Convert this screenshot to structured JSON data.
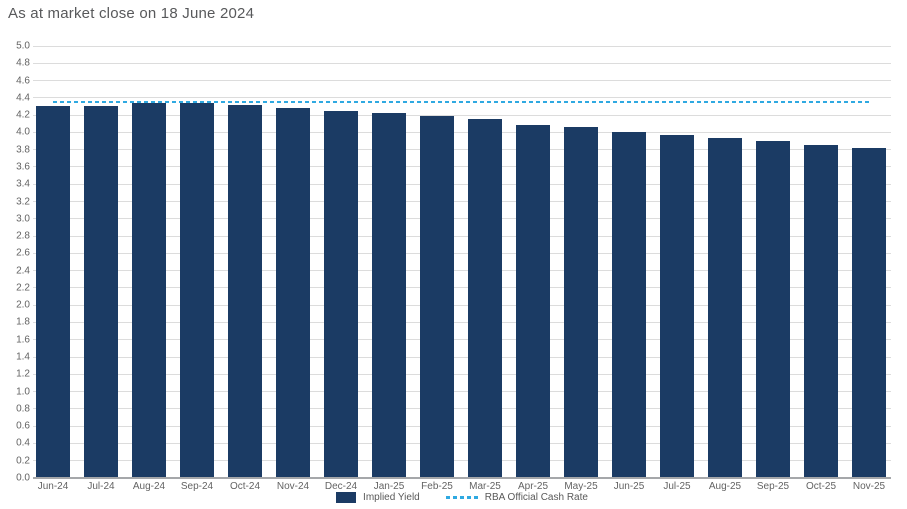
{
  "chart_data": {
    "type": "bar",
    "title": "As at market close on 18 June 2024",
    "categories": [
      "Jun-24",
      "Jul-24",
      "Aug-24",
      "Sep-24",
      "Oct-24",
      "Nov-24",
      "Dec-24",
      "Jan-25",
      "Feb-25",
      "Mar-25",
      "Apr-25",
      "May-25",
      "Jun-25",
      "Jul-25",
      "Aug-25",
      "Sep-25",
      "Oct-25",
      "Nov-25"
    ],
    "series": [
      {
        "name": "Implied Yield",
        "type": "bar",
        "color": "#1b3b64",
        "values": [
          4.31,
          4.31,
          4.34,
          4.34,
          4.32,
          4.28,
          4.25,
          4.22,
          4.19,
          4.15,
          4.09,
          4.06,
          4.01,
          3.97,
          3.93,
          3.9,
          3.86,
          3.82
        ]
      },
      {
        "name": "RBA Official Cash Rate",
        "type": "line",
        "line_style": "dashed",
        "color": "#2fa9e1",
        "value": 4.35
      }
    ],
    "xlabel": "",
    "ylabel": "",
    "ylim": [
      0.0,
      5.0
    ],
    "ytick_step": 0.2,
    "grid": true,
    "legend_position": "bottom-center"
  }
}
